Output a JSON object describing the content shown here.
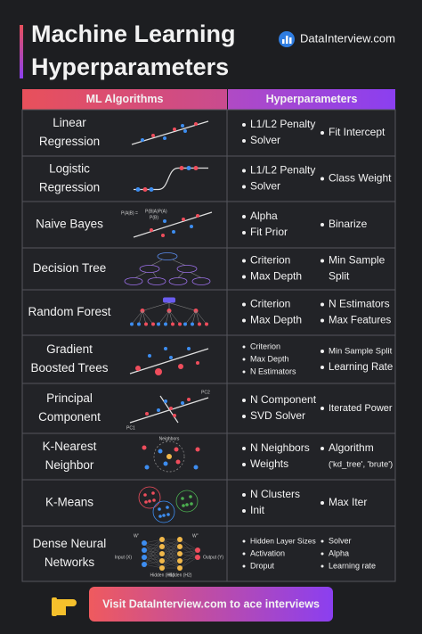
{
  "header": {
    "title_line1": "Machine Learning",
    "title_line2": "Hyperparameters",
    "brand": "DataInterview.com"
  },
  "table": {
    "headers": [
      "ML Algorithms",
      "Hyperparameters"
    ],
    "rows": [
      {
        "algorithm": [
          "Linear",
          "Regression"
        ],
        "hyperparameters": [
          [
            "L1/L2 Penalty",
            "Solver"
          ],
          [
            "Fit Intercept"
          ]
        ]
      },
      {
        "algorithm": [
          "Logistic",
          "Regression"
        ],
        "hyperparameters": [
          [
            "L1/L2 Penalty",
            "Solver"
          ],
          [
            "Class Weight"
          ]
        ]
      },
      {
        "algorithm": [
          "Naive Bayes"
        ],
        "hyperparameters": [
          [
            "Alpha",
            "Fit Prior"
          ],
          [
            "Binarize"
          ]
        ],
        "figure_labels": [
          "P(A|B) =",
          "P(B|A)P(A)",
          "P(B)"
        ]
      },
      {
        "algorithm": [
          "Decision Tree"
        ],
        "hyperparameters": [
          [
            "Criterion",
            "Max Depth"
          ],
          [
            [
              "Min Sample",
              "Split"
            ]
          ]
        ]
      },
      {
        "algorithm": [
          "Random Forest"
        ],
        "hyperparameters": [
          [
            "Criterion",
            "Max Depth"
          ],
          [
            "N Estimators",
            "Max Features"
          ]
        ]
      },
      {
        "algorithm": [
          "Gradient",
          "Boosted Trees"
        ],
        "hyperparameters": [
          [
            "Criterion",
            "Max Depth",
            "N Estimators"
          ],
          [
            "Min Sample Split",
            "Learning Rate"
          ]
        ]
      },
      {
        "algorithm": [
          "Principal",
          "Component"
        ],
        "hyperparameters": [
          [
            "N Component",
            "SVD Solver"
          ],
          [
            "Iterated Power"
          ]
        ],
        "figure_labels": [
          "PC2",
          "PC1"
        ]
      },
      {
        "algorithm": [
          "K-Nearest",
          "Neighbor"
        ],
        "hyperparameters": [
          [
            "N Neighbors",
            "Weights"
          ],
          [
            [
              "Algorithm",
              "('kd_tree', 'brute')"
            ]
          ]
        ],
        "figure_labels": [
          "Neighbors"
        ]
      },
      {
        "algorithm": [
          "K-Means"
        ],
        "hyperparameters": [
          [
            "N Clusters",
            "Init"
          ],
          [
            "Max Iter"
          ]
        ]
      },
      {
        "algorithm": [
          "Dense Neural",
          "Networks"
        ],
        "hyperparameters": [
          [
            "Hidden Layer Sizes",
            "Activation",
            "Droput"
          ],
          [
            "Solver",
            "Alpha",
            "Learning rate"
          ]
        ],
        "figure_labels": [
          "W'",
          "W''",
          "Input (X)",
          "Hidden (H1)",
          "Hidden (H2)",
          "Output (Y)"
        ]
      }
    ]
  },
  "footer": {
    "cta": "Visit DataInterview.com to ace interviews"
  }
}
